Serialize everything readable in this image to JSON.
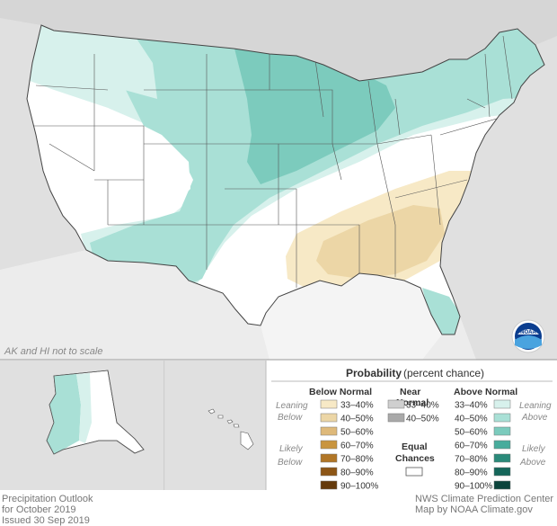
{
  "note": "AK and HI not to scale",
  "legend": {
    "title": "Probability",
    "title_suffix": "(percent chance)",
    "below_header": "Below Normal",
    "near_header_1": "Near",
    "near_header_2": "Normal",
    "above_header": "Above Normal",
    "leaning_1": "Leaning",
    "below_word": "Below",
    "above_word": "Above",
    "likely_1": "Likely",
    "equal_1": "Equal",
    "equal_2": "Chances",
    "below_rows": [
      {
        "label": "33–40%",
        "color": "#f7e9c6"
      },
      {
        "label": "40–50%",
        "color": "#ecd6a6"
      },
      {
        "label": "50–60%",
        "color": "#deb97a"
      },
      {
        "label": "60–70%",
        "color": "#c9953f"
      },
      {
        "label": "70–80%",
        "color": "#b17626"
      },
      {
        "label": "80–90%",
        "color": "#8d5616"
      },
      {
        "label": "90–100%",
        "color": "#643a0c"
      }
    ],
    "near_rows": [
      {
        "label": "33–40%",
        "color": "#cfcfcf"
      },
      {
        "label": "40–50%",
        "color": "#a9a9a9"
      }
    ],
    "above_rows": [
      {
        "label": "33–40%",
        "color": "#d7f1ec"
      },
      {
        "label": "40–50%",
        "color": "#a9e0d6"
      },
      {
        "label": "50–60%",
        "color": "#7ccbbd"
      },
      {
        "label": "60–70%",
        "color": "#48ac9c"
      },
      {
        "label": "70–80%",
        "color": "#2a8a7a"
      },
      {
        "label": "80–90%",
        "color": "#15665a"
      },
      {
        "label": "90–100%",
        "color": "#0b433b"
      }
    ]
  },
  "footer_left": [
    "Precipitation Outlook",
    "for October 2019",
    "Issued 30 Sep 2019"
  ],
  "footer_right": [
    "NWS Climate Prediction Center",
    "Map by NOAA Climate.gov"
  ],
  "logo_text": "NOAA",
  "colors": {
    "land": "#ffffff",
    "outside": "#e0e0e0",
    "water": "#ffffff",
    "border": "#555555"
  }
}
